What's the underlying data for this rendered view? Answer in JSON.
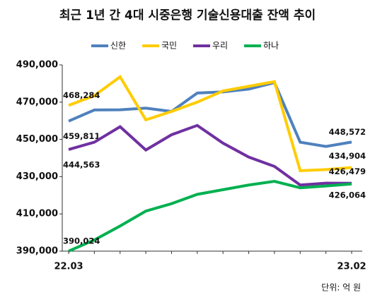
{
  "chart_data": {
    "type": "line",
    "title": "최근 1년 간 4대 시중은행 기술신용대출 잔액 추이",
    "unit_note": "단위: 억 원",
    "categories": [
      "22.03",
      null,
      null,
      null,
      null,
      null,
      null,
      null,
      null,
      null,
      null,
      "23.02"
    ],
    "ylim": [
      390000,
      490000
    ],
    "yticks": [
      {
        "value": 390000,
        "label": "390,000"
      },
      {
        "value": 410000,
        "label": "410,000"
      },
      {
        "value": 430000,
        "label": "430,000"
      },
      {
        "value": 450000,
        "label": "450,000"
      },
      {
        "value": 470000,
        "label": "470,000"
      },
      {
        "value": 490000,
        "label": "490,000"
      }
    ],
    "grid": false,
    "legend": "top",
    "series": [
      {
        "name": "신한",
        "color": "#4f81bd",
        "values": [
          459811,
          465800,
          465900,
          466800,
          465000,
          474900,
          475500,
          477000,
          480500,
          448500,
          446200,
          448572
        ],
        "value_labels": [
          "459,811",
          null,
          null,
          null,
          null,
          null,
          null,
          null,
          null,
          null,
          null,
          "448,572"
        ]
      },
      {
        "name": "국민",
        "color": "#ffcc00",
        "values": [
          468284,
          473500,
          483600,
          460500,
          465000,
          470000,
          476000,
          478500,
          481000,
          433200,
          433800,
          434904
        ],
        "value_labels": [
          "468,284",
          null,
          null,
          null,
          null,
          null,
          null,
          null,
          null,
          null,
          null,
          "434,904"
        ]
      },
      {
        "name": "우리",
        "color": "#7030a0",
        "values": [
          444563,
          448500,
          456800,
          444300,
          452500,
          457500,
          448000,
          440500,
          435500,
          425500,
          426500,
          426479
        ],
        "value_labels": [
          "444,563",
          null,
          null,
          null,
          null,
          null,
          null,
          null,
          null,
          null,
          null,
          "426,479"
        ]
      },
      {
        "name": "하나",
        "color": "#00b050",
        "values": [
          390024,
          396000,
          403500,
          411500,
          415500,
          420500,
          423000,
          425500,
          427500,
          424000,
          425000,
          426064
        ],
        "value_labels": [
          "390,024",
          null,
          null,
          null,
          null,
          null,
          null,
          null,
          null,
          null,
          null,
          "426,064"
        ]
      }
    ]
  }
}
